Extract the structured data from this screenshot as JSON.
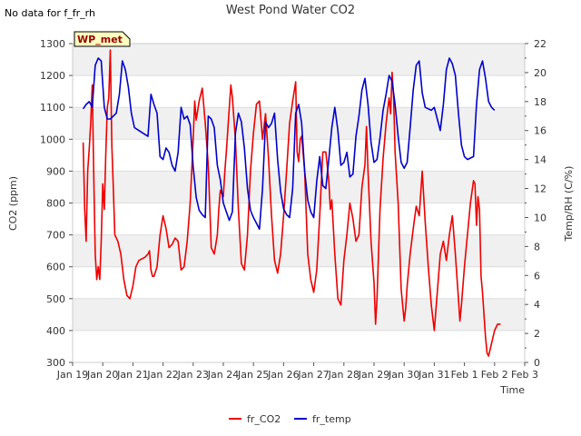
{
  "header": {
    "title": "West Pond Water CO2",
    "no_data_note": "No data for f_fr_rh",
    "site_badge": "WP_met"
  },
  "chart_data": {
    "type": "line",
    "title": "West Pond Water CO2",
    "xlabel": "Time",
    "ylabel": "CO2 (ppm)",
    "y2label": "Temp/RH (C/%)",
    "x_tick_labels": [
      "Jan 19",
      "Jan 20",
      "Jan 21",
      "Jan 22",
      "Jan 23",
      "Jan 24",
      "Jan 25",
      "Jan 26",
      "Jan 27",
      "Jan 28",
      "Jan 29",
      "Jan 30",
      "Jan 31",
      "Feb 1",
      "Feb 2",
      "Feb 3"
    ],
    "xlim_days": [
      0,
      15
    ],
    "ylim": [
      300,
      1300
    ],
    "y_ticks": [
      300,
      400,
      500,
      600,
      700,
      800,
      900,
      1000,
      1100,
      1200,
      1300
    ],
    "y2lim": [
      0,
      22
    ],
    "y2_ticks": [
      0,
      2,
      4,
      6,
      8,
      10,
      12,
      14,
      16,
      18,
      20,
      22
    ],
    "grid": "horizontal bands",
    "legend_placement": "bottom-center",
    "series": [
      {
        "name": "fr_CO2",
        "axis": "left",
        "color": "#ee0000",
        "points": [
          [
            0.35,
            990
          ],
          [
            0.4,
            780
          ],
          [
            0.45,
            680
          ],
          [
            0.5,
            900
          ],
          [
            0.55,
            970
          ],
          [
            0.6,
            1050
          ],
          [
            0.65,
            1170
          ],
          [
            0.7,
            900
          ],
          [
            0.75,
            640
          ],
          [
            0.8,
            560
          ],
          [
            0.85,
            600
          ],
          [
            0.9,
            560
          ],
          [
            0.95,
            680
          ],
          [
            1.0,
            860
          ],
          [
            1.05,
            780
          ],
          [
            1.1,
            950
          ],
          [
            1.15,
            1100
          ],
          [
            1.2,
            1130
          ],
          [
            1.25,
            1280
          ],
          [
            1.3,
            980
          ],
          [
            1.35,
            850
          ],
          [
            1.4,
            700
          ],
          [
            1.5,
            680
          ],
          [
            1.6,
            640
          ],
          [
            1.7,
            560
          ],
          [
            1.8,
            510
          ],
          [
            1.9,
            500
          ],
          [
            2.0,
            540
          ],
          [
            2.1,
            600
          ],
          [
            2.2,
            620
          ],
          [
            2.3,
            625
          ],
          [
            2.4,
            630
          ],
          [
            2.5,
            640
          ],
          [
            2.55,
            650
          ],
          [
            2.6,
            590
          ],
          [
            2.65,
            570
          ],
          [
            2.7,
            570
          ],
          [
            2.8,
            600
          ],
          [
            2.9,
            700
          ],
          [
            3.0,
            760
          ],
          [
            3.1,
            720
          ],
          [
            3.2,
            660
          ],
          [
            3.3,
            670
          ],
          [
            3.4,
            690
          ],
          [
            3.5,
            680
          ],
          [
            3.6,
            590
          ],
          [
            3.7,
            600
          ],
          [
            3.8,
            680
          ],
          [
            3.9,
            800
          ],
          [
            4.0,
            1000
          ],
          [
            4.05,
            1120
          ],
          [
            4.1,
            1060
          ],
          [
            4.2,
            1120
          ],
          [
            4.3,
            1160
          ],
          [
            4.4,
            1050
          ],
          [
            4.5,
            920
          ],
          [
            4.6,
            660
          ],
          [
            4.7,
            640
          ],
          [
            4.8,
            700
          ],
          [
            4.85,
            780
          ],
          [
            4.9,
            840
          ],
          [
            5.0,
            820
          ],
          [
            5.05,
            900
          ],
          [
            5.1,
            960
          ],
          [
            5.2,
            1100
          ],
          [
            5.25,
            1170
          ],
          [
            5.3,
            1130
          ],
          [
            5.4,
            1000
          ],
          [
            5.5,
            780
          ],
          [
            5.6,
            610
          ],
          [
            5.7,
            590
          ],
          [
            5.8,
            700
          ],
          [
            5.9,
            900
          ],
          [
            6.0,
            1020
          ],
          [
            6.1,
            1110
          ],
          [
            6.2,
            1120
          ],
          [
            6.3,
            1000
          ],
          [
            6.4,
            1080
          ],
          [
            6.5,
            940
          ],
          [
            6.6,
            760
          ],
          [
            6.7,
            620
          ],
          [
            6.8,
            580
          ],
          [
            6.9,
            640
          ],
          [
            7.0,
            760
          ],
          [
            7.1,
            900
          ],
          [
            7.2,
            1050
          ],
          [
            7.3,
            1120
          ],
          [
            7.4,
            1180
          ],
          [
            7.45,
            960
          ],
          [
            7.5,
            930
          ],
          [
            7.55,
            1000
          ],
          [
            7.6,
            1010
          ],
          [
            7.7,
            900
          ],
          [
            7.8,
            640
          ],
          [
            7.9,
            560
          ],
          [
            8.0,
            520
          ],
          [
            8.1,
            590
          ],
          [
            8.2,
            760
          ],
          [
            8.3,
            960
          ],
          [
            8.4,
            960
          ],
          [
            8.5,
            870
          ],
          [
            8.55,
            780
          ],
          [
            8.6,
            810
          ],
          [
            8.7,
            640
          ],
          [
            8.8,
            500
          ],
          [
            8.9,
            480
          ],
          [
            9.0,
            620
          ],
          [
            9.1,
            700
          ],
          [
            9.2,
            800
          ],
          [
            9.3,
            750
          ],
          [
            9.4,
            680
          ],
          [
            9.5,
            700
          ],
          [
            9.6,
            850
          ],
          [
            9.7,
            920
          ],
          [
            9.75,
            1040
          ],
          [
            9.8,
            900
          ],
          [
            9.9,
            680
          ],
          [
            10.0,
            550
          ],
          [
            10.05,
            420
          ],
          [
            10.1,
            500
          ],
          [
            10.2,
            780
          ],
          [
            10.3,
            940
          ],
          [
            10.4,
            1050
          ],
          [
            10.5,
            1130
          ],
          [
            10.55,
            1080
          ],
          [
            10.6,
            1210
          ],
          [
            10.65,
            1130
          ],
          [
            10.7,
            960
          ],
          [
            10.8,
            800
          ],
          [
            10.9,
            530
          ],
          [
            11.0,
            430
          ],
          [
            11.05,
            470
          ],
          [
            11.1,
            540
          ],
          [
            11.2,
            640
          ],
          [
            11.3,
            720
          ],
          [
            11.4,
            790
          ],
          [
            11.5,
            760
          ],
          [
            11.6,
            900
          ],
          [
            11.7,
            740
          ],
          [
            11.8,
            600
          ],
          [
            11.9,
            480
          ],
          [
            12.0,
            400
          ],
          [
            12.1,
            520
          ],
          [
            12.2,
            640
          ],
          [
            12.3,
            680
          ],
          [
            12.4,
            620
          ],
          [
            12.5,
            700
          ],
          [
            12.6,
            760
          ],
          [
            12.7,
            640
          ],
          [
            12.8,
            500
          ],
          [
            12.85,
            430
          ],
          [
            12.9,
            480
          ],
          [
            13.0,
            600
          ],
          [
            13.1,
            700
          ],
          [
            13.2,
            800
          ],
          [
            13.3,
            870
          ],
          [
            13.35,
            860
          ],
          [
            13.4,
            730
          ],
          [
            13.45,
            820
          ],
          [
            13.5,
            780
          ],
          [
            13.55,
            570
          ],
          [
            13.6,
            520
          ],
          [
            13.7,
            380
          ],
          [
            13.75,
            330
          ],
          [
            13.8,
            320
          ],
          [
            13.9,
            360
          ],
          [
            14.0,
            400
          ],
          [
            14.1,
            420
          ],
          [
            14.2,
            420
          ]
        ]
      },
      {
        "name": "fr_temp",
        "axis": "right",
        "color": "#0000cc",
        "points": [
          [
            0.35,
            17.5
          ],
          [
            0.45,
            17.8
          ],
          [
            0.55,
            18.0
          ],
          [
            0.65,
            17.6
          ],
          [
            0.75,
            20.5
          ],
          [
            0.85,
            21.0
          ],
          [
            0.95,
            20.8
          ],
          [
            1.05,
            17.6
          ],
          [
            1.15,
            16.8
          ],
          [
            1.25,
            16.8
          ],
          [
            1.35,
            17.0
          ],
          [
            1.45,
            17.2
          ],
          [
            1.55,
            18.5
          ],
          [
            1.65,
            20.8
          ],
          [
            1.75,
            20.2
          ],
          [
            1.85,
            19.0
          ],
          [
            1.95,
            17.2
          ],
          [
            2.05,
            16.2
          ],
          [
            2.2,
            16.0
          ],
          [
            2.35,
            15.8
          ],
          [
            2.5,
            15.6
          ],
          [
            2.6,
            18.5
          ],
          [
            2.7,
            17.8
          ],
          [
            2.8,
            17.2
          ],
          [
            2.9,
            14.2
          ],
          [
            3.0,
            14.0
          ],
          [
            3.1,
            14.8
          ],
          [
            3.2,
            14.5
          ],
          [
            3.3,
            13.6
          ],
          [
            3.4,
            13.2
          ],
          [
            3.5,
            14.5
          ],
          [
            3.6,
            17.6
          ],
          [
            3.7,
            16.8
          ],
          [
            3.8,
            17.0
          ],
          [
            3.9,
            16.4
          ],
          [
            4.0,
            13.5
          ],
          [
            4.1,
            11.4
          ],
          [
            4.2,
            10.5
          ],
          [
            4.3,
            10.2
          ],
          [
            4.4,
            10.0
          ],
          [
            4.5,
            17.0
          ],
          [
            4.6,
            16.8
          ],
          [
            4.7,
            16.2
          ],
          [
            4.8,
            13.6
          ],
          [
            4.9,
            12.6
          ],
          [
            5.0,
            11.0
          ],
          [
            5.1,
            10.4
          ],
          [
            5.2,
            9.8
          ],
          [
            5.3,
            10.4
          ],
          [
            5.4,
            15.8
          ],
          [
            5.5,
            17.2
          ],
          [
            5.6,
            16.6
          ],
          [
            5.7,
            14.8
          ],
          [
            5.8,
            12.0
          ],
          [
            5.9,
            10.5
          ],
          [
            6.0,
            10.0
          ],
          [
            6.1,
            9.6
          ],
          [
            6.2,
            9.2
          ],
          [
            6.3,
            12.0
          ],
          [
            6.4,
            16.6
          ],
          [
            6.5,
            16.2
          ],
          [
            6.6,
            16.5
          ],
          [
            6.7,
            17.2
          ],
          [
            6.8,
            14.0
          ],
          [
            6.9,
            11.8
          ],
          [
            7.0,
            10.6
          ],
          [
            7.1,
            10.2
          ],
          [
            7.2,
            10.0
          ],
          [
            7.3,
            12.0
          ],
          [
            7.4,
            17.2
          ],
          [
            7.5,
            17.8
          ],
          [
            7.6,
            16.5
          ],
          [
            7.7,
            13.2
          ],
          [
            7.8,
            11.2
          ],
          [
            7.9,
            10.4
          ],
          [
            8.0,
            10.0
          ],
          [
            8.1,
            12.5
          ],
          [
            8.2,
            14.2
          ],
          [
            8.3,
            12.2
          ],
          [
            8.4,
            12.0
          ],
          [
            8.5,
            14.0
          ],
          [
            8.6,
            16.2
          ],
          [
            8.7,
            17.6
          ],
          [
            8.8,
            16.0
          ],
          [
            8.9,
            13.6
          ],
          [
            9.0,
            13.8
          ],
          [
            9.1,
            14.5
          ],
          [
            9.2,
            12.8
          ],
          [
            9.3,
            13.0
          ],
          [
            9.4,
            15.6
          ],
          [
            9.5,
            17.0
          ],
          [
            9.6,
            18.8
          ],
          [
            9.7,
            19.6
          ],
          [
            9.8,
            17.8
          ],
          [
            9.9,
            15.2
          ],
          [
            10.0,
            13.8
          ],
          [
            10.1,
            14.0
          ],
          [
            10.2,
            15.5
          ],
          [
            10.3,
            17.4
          ],
          [
            10.4,
            18.5
          ],
          [
            10.5,
            19.8
          ],
          [
            10.6,
            19.4
          ],
          [
            10.7,
            17.8
          ],
          [
            10.8,
            15.6
          ],
          [
            10.9,
            13.8
          ],
          [
            11.0,
            13.4
          ],
          [
            11.1,
            13.8
          ],
          [
            11.2,
            16.2
          ],
          [
            11.3,
            18.8
          ],
          [
            11.4,
            20.5
          ],
          [
            11.5,
            20.8
          ],
          [
            11.6,
            18.6
          ],
          [
            11.7,
            17.6
          ],
          [
            11.8,
            17.5
          ],
          [
            11.9,
            17.4
          ],
          [
            12.0,
            17.6
          ],
          [
            12.1,
            16.8
          ],
          [
            12.2,
            16.0
          ],
          [
            12.3,
            17.8
          ],
          [
            12.4,
            20.2
          ],
          [
            12.5,
            21.0
          ],
          [
            12.6,
            20.6
          ],
          [
            12.7,
            19.8
          ],
          [
            12.8,
            17.2
          ],
          [
            12.9,
            15.0
          ],
          [
            13.0,
            14.2
          ],
          [
            13.1,
            14.0
          ],
          [
            13.2,
            14.1
          ],
          [
            13.3,
            14.2
          ],
          [
            13.4,
            17.8
          ],
          [
            13.5,
            20.2
          ],
          [
            13.6,
            20.8
          ],
          [
            13.7,
            19.6
          ],
          [
            13.8,
            18.0
          ],
          [
            13.9,
            17.6
          ],
          [
            14.0,
            17.4
          ]
        ]
      }
    ]
  }
}
